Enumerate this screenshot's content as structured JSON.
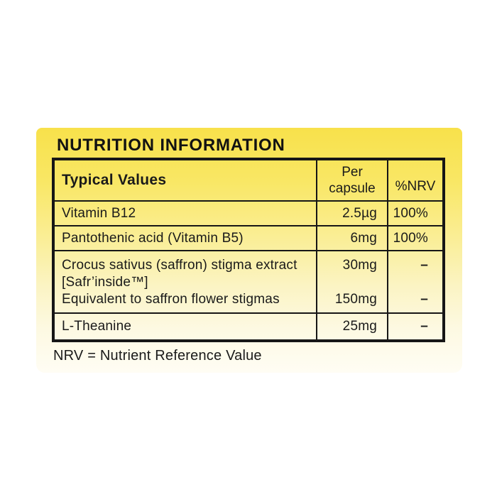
{
  "panel": {
    "title": "NUTRITION INFORMATION",
    "footnote": "NRV = Nutrient Reference Value"
  },
  "table": {
    "header": {
      "typical_values": "Typical Values",
      "per_capsule": "Per\ncapsule",
      "nrv": "%NRV"
    },
    "rows": [
      {
        "name": "Vitamin B12",
        "per_capsule": "2.5µg",
        "nrv": "100%"
      },
      {
        "name": "Pantothenic acid (Vitamin B5)",
        "per_capsule": "6mg",
        "nrv": "100%"
      },
      {
        "lines": [
          {
            "name": "Crocus sativus (saffron) stigma extract",
            "per_capsule": "30mg",
            "nrv": "–"
          },
          {
            "name": "[Safr’inside™]",
            "per_capsule": "",
            "nrv": ""
          },
          {
            "name": "Equivalent to saffron flower stigmas",
            "per_capsule": "150mg",
            "nrv": "–"
          }
        ]
      },
      {
        "name": "L-Theanine",
        "per_capsule": "25mg",
        "nrv": "–"
      }
    ]
  },
  "colors": {
    "panel_gradient_top": "#f8e14b",
    "panel_gradient_bottom": "#fffdf4",
    "text": "#1a1a1a",
    "border": "#161616"
  }
}
